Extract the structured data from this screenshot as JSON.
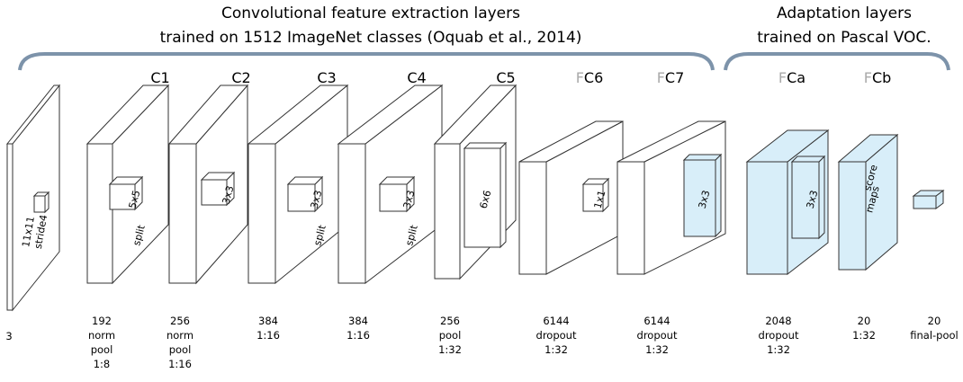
{
  "header": {
    "left": [
      "Convolutional feature extraction layers",
      "trained on 1512 ImageNet classes (Oquab et al., 2014)"
    ],
    "right": [
      "Adaptation layers",
      "trained on Pascal VOC."
    ]
  },
  "layers": [
    {
      "kernel": [
        "11x11",
        "stride4"
      ],
      "caption": [
        "3"
      ]
    },
    {
      "name": "C1",
      "kernel": [
        "5x5",
        "split"
      ],
      "caption": [
        "192",
        "norm",
        "pool",
        "1:8"
      ]
    },
    {
      "name": "C2",
      "kernel": [
        "3x3"
      ],
      "caption": [
        "256",
        "norm",
        "pool",
        "1:16"
      ]
    },
    {
      "name": "C3",
      "kernel": [
        "3x3",
        "split"
      ],
      "caption": [
        "384",
        "1:16"
      ]
    },
    {
      "name": "C4",
      "kernel": [
        "3x3",
        "split"
      ],
      "caption": [
        "384",
        "1:16"
      ]
    },
    {
      "name": "C5",
      "kernel": [
        "6x6"
      ],
      "caption": [
        "256",
        "pool",
        "1:32"
      ]
    },
    {
      "prefix": "F",
      "name": "C6",
      "kernel": [
        "1x1"
      ],
      "caption": [
        "6144",
        "dropout",
        "1:32"
      ]
    },
    {
      "prefix": "F",
      "name": "C7",
      "kernel": [
        "3x3"
      ],
      "caption": [
        "6144",
        "dropout",
        "1:32"
      ]
    },
    {
      "prefix": "F",
      "name": "Ca",
      "kernel": [
        "3x3"
      ],
      "caption": [
        "2048",
        "dropout",
        "1:32"
      ]
    },
    {
      "prefix": "F",
      "name": "Cb",
      "kernel": [
        "score",
        "maps"
      ],
      "caption": [
        "20",
        "1:32"
      ]
    },
    {
      "caption": [
        "20",
        "final-pool"
      ]
    }
  ]
}
